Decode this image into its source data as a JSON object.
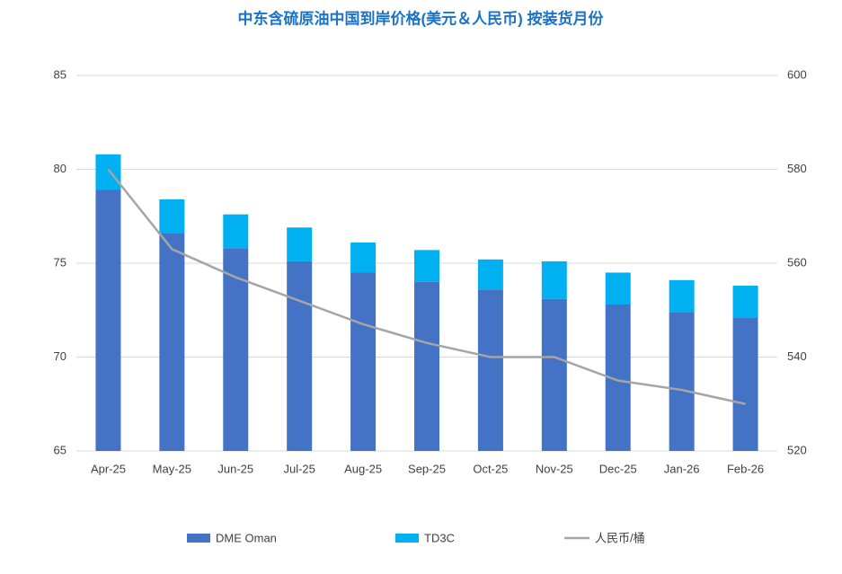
{
  "chart_data": {
    "type": "bar",
    "title": "中东含硫原油中国到岸价格(美元＆人民币) 按装货月份",
    "categories": [
      "Apr-25",
      "May-25",
      "Jun-25",
      "Jul-25",
      "Aug-25",
      "Sep-25",
      "Oct-25",
      "Nov-25",
      "Dec-25",
      "Jan-26",
      "Feb-26"
    ],
    "stacked": true,
    "series": [
      {
        "name": "DME Oman",
        "color": "#4472c4",
        "type": "bar",
        "values": [
          78.9,
          76.6,
          75.8,
          75.1,
          74.5,
          74.0,
          73.6,
          73.1,
          72.8,
          72.4,
          72.1
        ]
      },
      {
        "name": "TD3C",
        "color": "#00b0f0",
        "type": "bar",
        "values": [
          1.9,
          1.8,
          1.8,
          1.8,
          1.6,
          1.7,
          1.6,
          2.0,
          1.7,
          1.7,
          1.7
        ]
      },
      {
        "name": "人民币/桶",
        "color": "#a5a5a5",
        "type": "line",
        "axis": "y2",
        "values": [
          580,
          563,
          557,
          552,
          547,
          543,
          540,
          540,
          535,
          533,
          530
        ]
      }
    ],
    "ylim": [
      65,
      85
    ],
    "yticks": [
      65,
      70,
      75,
      80,
      85
    ],
    "y2lim": [
      520,
      600
    ],
    "y2ticks": [
      520,
      540,
      560,
      580,
      600
    ],
    "grid": true,
    "legend": "bottom"
  }
}
